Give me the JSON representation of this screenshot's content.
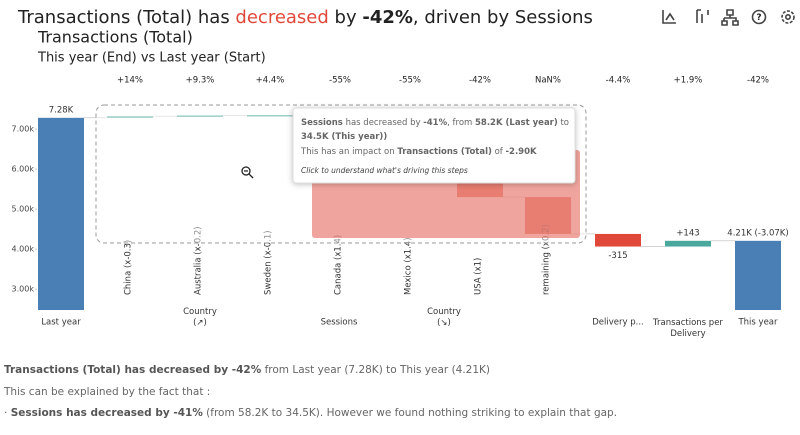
{
  "title_parts": [
    "Transactions (Total) has ",
    "decreased",
    " by ",
    "-42%",
    ", driven by Sessions"
  ],
  "subtitle": "Transactions (Total)",
  "comparison": "This year (End) vs Last year (Start)",
  "chart_data": {
    "type": "waterfall",
    "categories": [
      "Last year",
      "China (x-0.3)",
      "Australia (x-0.2)",
      "Sweden (x-0.1)",
      "Canada (x1.4)",
      "Mexico (x1.4)",
      "USA (x1)",
      "remaining (x0.2)",
      "Delivery p...",
      "Transactions per Delivery",
      "This year"
    ],
    "measure": [
      "total",
      "relative",
      "relative",
      "relative",
      "relative",
      "relative",
      "relative",
      "relative",
      "relative",
      "relative",
      "total"
    ],
    "values": [
      7280,
      40,
      20,
      10,
      -1100,
      -600,
      -350,
      -920,
      -315,
      143,
      4208
    ],
    "value_labels": [
      "7.28K",
      null,
      null,
      null,
      null,
      null,
      null,
      null,
      "-315",
      "+143",
      "4.21K (-3.07K)"
    ],
    "change_labels": [
      null,
      "+14%",
      "+9.3%",
      "+4.4%",
      "-55%",
      "-55%",
      "-42%",
      "NaN%",
      "-4.4%",
      "+1.9%",
      "-42%"
    ],
    "groups": [
      {
        "label": "Country (↗)",
        "from": 1,
        "to": 3
      },
      {
        "label": "Sessions",
        "from": 1,
        "to": 7
      },
      {
        "label": "Country (↘)",
        "from": 4,
        "to": 7
      }
    ],
    "colors": {
      "total": "#4a7fb5",
      "increase": "#4aa89c",
      "decrease": "#e0493a"
    },
    "ylim": [
      2480,
      7850
    ],
    "yticks": [
      {
        "value": 3000,
        "label": "3.00k"
      },
      {
        "value": 4000,
        "label": "4.00k"
      },
      {
        "value": 5000,
        "label": "5.00k"
      },
      {
        "value": 6000,
        "label": "6.00k"
      },
      {
        "value": 7000,
        "label": "7.00k"
      }
    ]
  },
  "tooltip": {
    "line1": [
      "Sessions",
      " has decreased by ",
      "-41%",
      ", from ",
      "58.2K (Last year)",
      " to "
    ],
    "line2": [
      "34.5K (This year)",
      ")"
    ],
    "line3": [
      "This has an impact on ",
      "Transactions (Total)",
      " of ",
      "-2.90K"
    ],
    "hint": "Click to understand what's driving this steps"
  },
  "narrative": {
    "line1": [
      "Transactions (Total) has ",
      "decreased",
      " by -42%",
      " from Last year (7.28K) to This year (4.21K)"
    ],
    "line2": "This can be explained by the fact that :",
    "line3": [
      "· ",
      "Sessions has ",
      "decreased",
      " by -41%",
      " (from 58.2K to 34.5K). However we found nothing striking to explain that gap."
    ]
  }
}
